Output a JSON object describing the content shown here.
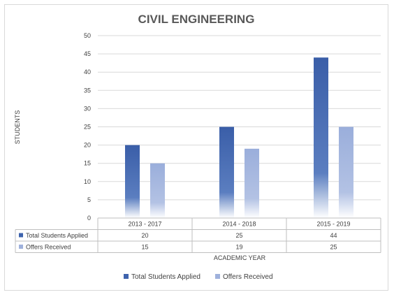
{
  "chart_data": {
    "type": "bar",
    "title": "CIVIL ENGINEERING",
    "xlabel": "ACADEMIC YEAR",
    "ylabel": "STUDENTS",
    "ylim": [
      0,
      50
    ],
    "yticks": [
      0,
      5,
      10,
      15,
      20,
      25,
      30,
      35,
      40,
      45,
      50
    ],
    "grid": true,
    "legend": "bottom",
    "categories": [
      "2013 - 2017",
      "2014 - 2018",
      "2015 - 2019"
    ],
    "series": [
      {
        "name": "Total Students Applied",
        "values": [
          20,
          25,
          44
        ],
        "color": "#3e63ad"
      },
      {
        "name": "Offers Received",
        "values": [
          15,
          19,
          25
        ],
        "color": "#9fb1dc"
      }
    ],
    "data_table": true
  }
}
